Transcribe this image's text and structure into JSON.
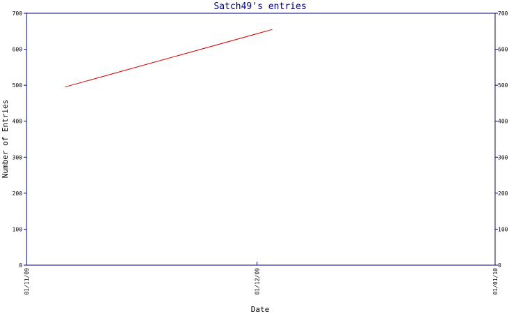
{
  "chart_data": {
    "type": "line",
    "title": "Satch49's entries",
    "xlabel": "Date",
    "ylabel": "Number of Entries",
    "x_ticks": [
      "01/11/09",
      "01/12/09",
      "01/01/10"
    ],
    "x_range": [
      "2009-11-01",
      "2010-01-01"
    ],
    "ylim": [
      0,
      700
    ],
    "y_ticks": [
      0,
      100,
      200,
      300,
      400,
      500,
      600,
      700
    ],
    "grid": false,
    "legend": "none",
    "series": [
      {
        "color": "#d40000",
        "points": [
          {
            "x": "2009-11-06",
            "y": 495
          },
          {
            "x": "2009-12-03",
            "y": 655
          }
        ]
      }
    ],
    "colors": {
      "axis": "#00007a",
      "title": "#00007a",
      "text": "#000000"
    }
  }
}
